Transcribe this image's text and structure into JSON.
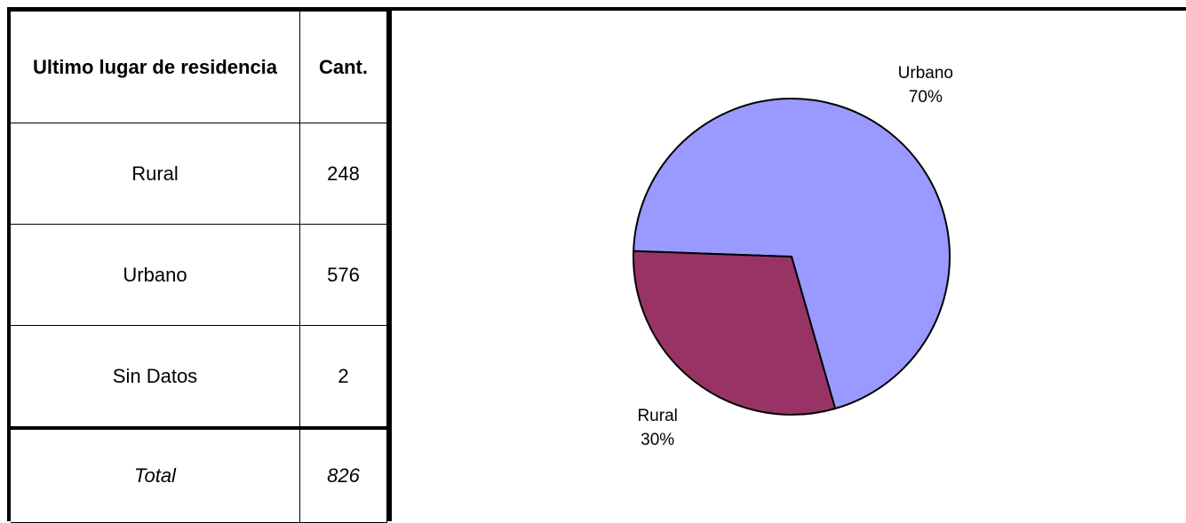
{
  "table": {
    "header": [
      "Ultimo lugar de residencia",
      "Cant."
    ],
    "rows": [
      [
        "Rural",
        248
      ],
      [
        "Urbano",
        576
      ],
      [
        "Sin Datos",
        2
      ]
    ],
    "total": [
      "Total",
      826
    ]
  },
  "chart_data": {
    "type": "pie",
    "categories": [
      "Urbano",
      "Rural"
    ],
    "values": [
      70,
      30
    ],
    "value_labels": [
      "70%",
      "30%"
    ],
    "colors": [
      "#9999ff",
      "#993366"
    ]
  }
}
